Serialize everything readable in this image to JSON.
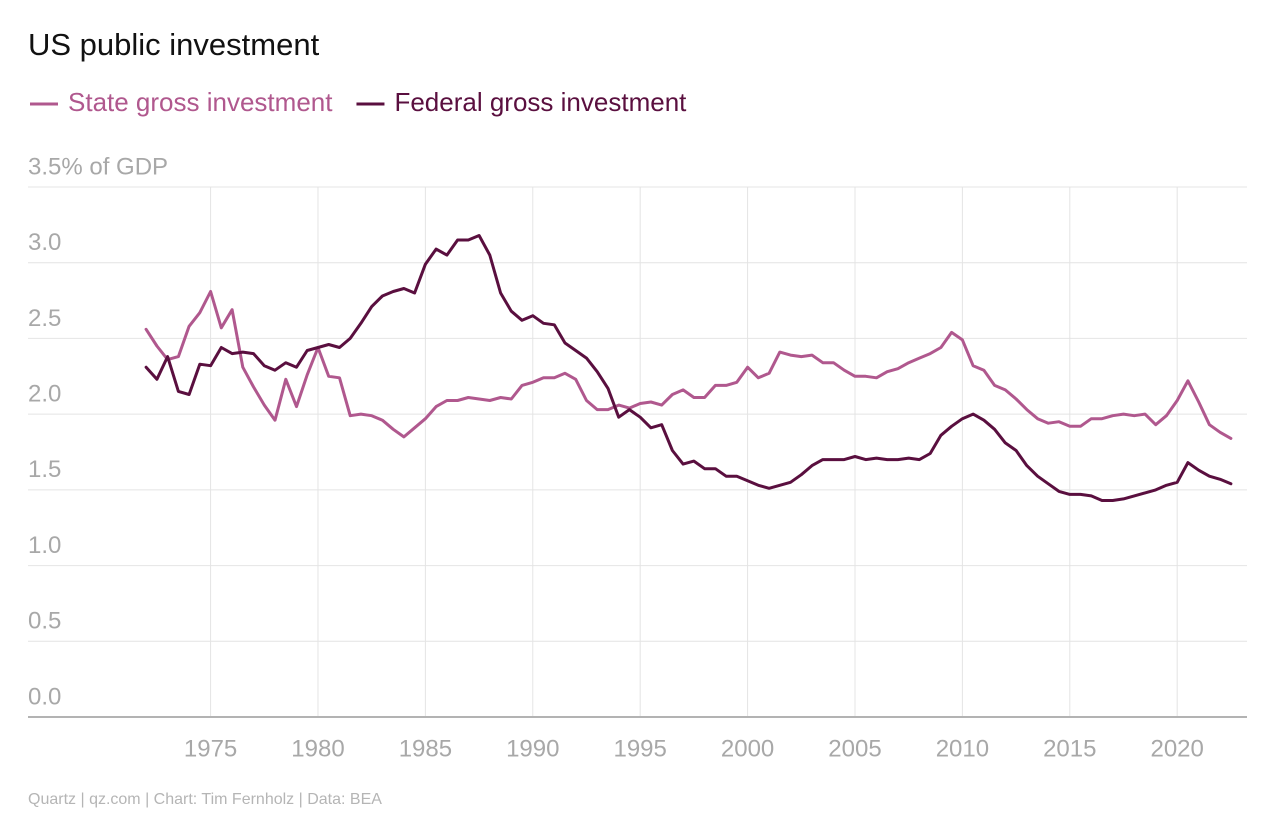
{
  "chart_data": {
    "type": "line",
    "title": "US public investment",
    "source": "Quartz | qz.com | Chart: Tim Fernholz | Data: BEA",
    "x": [
      1972,
      1972.5,
      1973,
      1973.5,
      1974,
      1974.5,
      1975,
      1975.5,
      1976,
      1976.5,
      1977,
      1977.5,
      1978,
      1978.5,
      1979,
      1979.5,
      1980,
      1980.5,
      1981,
      1981.5,
      1982,
      1982.5,
      1983,
      1983.5,
      1984,
      1984.5,
      1985,
      1985.5,
      1986,
      1986.5,
      1987,
      1987.5,
      1988,
      1988.5,
      1989,
      1989.5,
      1990,
      1990.5,
      1991,
      1991.5,
      1992,
      1992.5,
      1993,
      1993.5,
      1994,
      1994.5,
      1995,
      1995.5,
      1996,
      1996.5,
      1997,
      1997.5,
      1998,
      1998.5,
      1999,
      1999.5,
      2000,
      2000.5,
      2001,
      2001.5,
      2002,
      2002.5,
      2003,
      2003.5,
      2004,
      2004.5,
      2005,
      2005.5,
      2006,
      2006.5,
      2007,
      2007.5,
      2008,
      2008.5,
      2009,
      2009.5,
      2010,
      2010.5,
      2011,
      2011.5,
      2012,
      2012.5,
      2013,
      2013.5,
      2014,
      2014.5,
      2015,
      2015.5,
      2016,
      2016.5,
      2017,
      2017.5,
      2018,
      2018.5,
      2019,
      2019.5,
      2020,
      2020.5,
      2021,
      2021.5,
      2022,
      2022.5
    ],
    "series": [
      {
        "name": "State gross investment",
        "color": "#b0588e",
        "values": [
          2.56,
          2.45,
          2.36,
          2.38,
          2.58,
          2.67,
          2.81,
          2.57,
          2.69,
          2.31,
          2.18,
          2.06,
          1.96,
          2.23,
          2.05,
          2.26,
          2.44,
          2.25,
          2.24,
          1.99,
          2.0,
          1.99,
          1.96,
          1.9,
          1.85,
          1.91,
          1.97,
          2.05,
          2.09,
          2.09,
          2.11,
          2.1,
          2.09,
          2.11,
          2.1,
          2.19,
          2.21,
          2.24,
          2.24,
          2.27,
          2.23,
          2.09,
          2.03,
          2.03,
          2.06,
          2.04,
          2.07,
          2.08,
          2.06,
          2.13,
          2.16,
          2.11,
          2.11,
          2.19,
          2.19,
          2.21,
          2.31,
          2.24,
          2.27,
          2.41,
          2.39,
          2.38,
          2.39,
          2.34,
          2.34,
          2.29,
          2.25,
          2.25,
          2.24,
          2.28,
          2.3,
          2.34,
          2.37,
          2.4,
          2.44,
          2.54,
          2.49,
          2.32,
          2.29,
          2.19,
          2.16,
          2.1,
          2.03,
          1.97,
          1.94,
          1.95,
          1.92,
          1.92,
          1.97,
          1.97,
          1.99,
          2.0,
          1.99,
          2.0,
          1.93,
          1.99,
          2.09,
          2.22,
          2.08,
          1.93,
          1.88,
          1.84
        ]
      },
      {
        "name": "Federal gross investment",
        "color": "#5a0f3f",
        "values": [
          2.31,
          2.23,
          2.38,
          2.15,
          2.13,
          2.33,
          2.32,
          2.44,
          2.4,
          2.41,
          2.4,
          2.32,
          2.29,
          2.34,
          2.31,
          2.42,
          2.44,
          2.46,
          2.44,
          2.5,
          2.6,
          2.71,
          2.78,
          2.81,
          2.83,
          2.8,
          2.99,
          3.09,
          3.05,
          3.15,
          3.15,
          3.18,
          3.05,
          2.8,
          2.68,
          2.62,
          2.65,
          2.6,
          2.59,
          2.47,
          2.42,
          2.37,
          2.28,
          2.17,
          1.98,
          2.03,
          1.98,
          1.91,
          1.93,
          1.76,
          1.67,
          1.69,
          1.64,
          1.64,
          1.59,
          1.59,
          1.56,
          1.53,
          1.51,
          1.53,
          1.55,
          1.6,
          1.66,
          1.7,
          1.7,
          1.7,
          1.72,
          1.7,
          1.71,
          1.7,
          1.7,
          1.71,
          1.7,
          1.74,
          1.86,
          1.92,
          1.97,
          2.0,
          1.96,
          1.9,
          1.81,
          1.76,
          1.66,
          1.59,
          1.54,
          1.49,
          1.47,
          1.47,
          1.46,
          1.43,
          1.43,
          1.44,
          1.46,
          1.48,
          1.5,
          1.53,
          1.55,
          1.68,
          1.63,
          1.59,
          1.57,
          1.54
        ]
      }
    ],
    "xlim": [
      1966.5,
      2023.25
    ],
    "xticks": [
      1975,
      1980,
      1985,
      1990,
      1995,
      2000,
      2005,
      2010,
      2015,
      2020
    ],
    "ylim": [
      0,
      3.5
    ],
    "yticks": [
      {
        "value": 0,
        "label": "0.0"
      },
      0.5,
      {
        "value": 1,
        "label": "1.0"
      },
      1.5,
      {
        "value": 2,
        "label": "2.0"
      },
      2.5,
      {
        "value": 3,
        "label": "3.0"
      },
      {
        "value": 3.5,
        "label": "3.5% of GDP"
      }
    ],
    "grid": true,
    "legend": "top-left"
  }
}
